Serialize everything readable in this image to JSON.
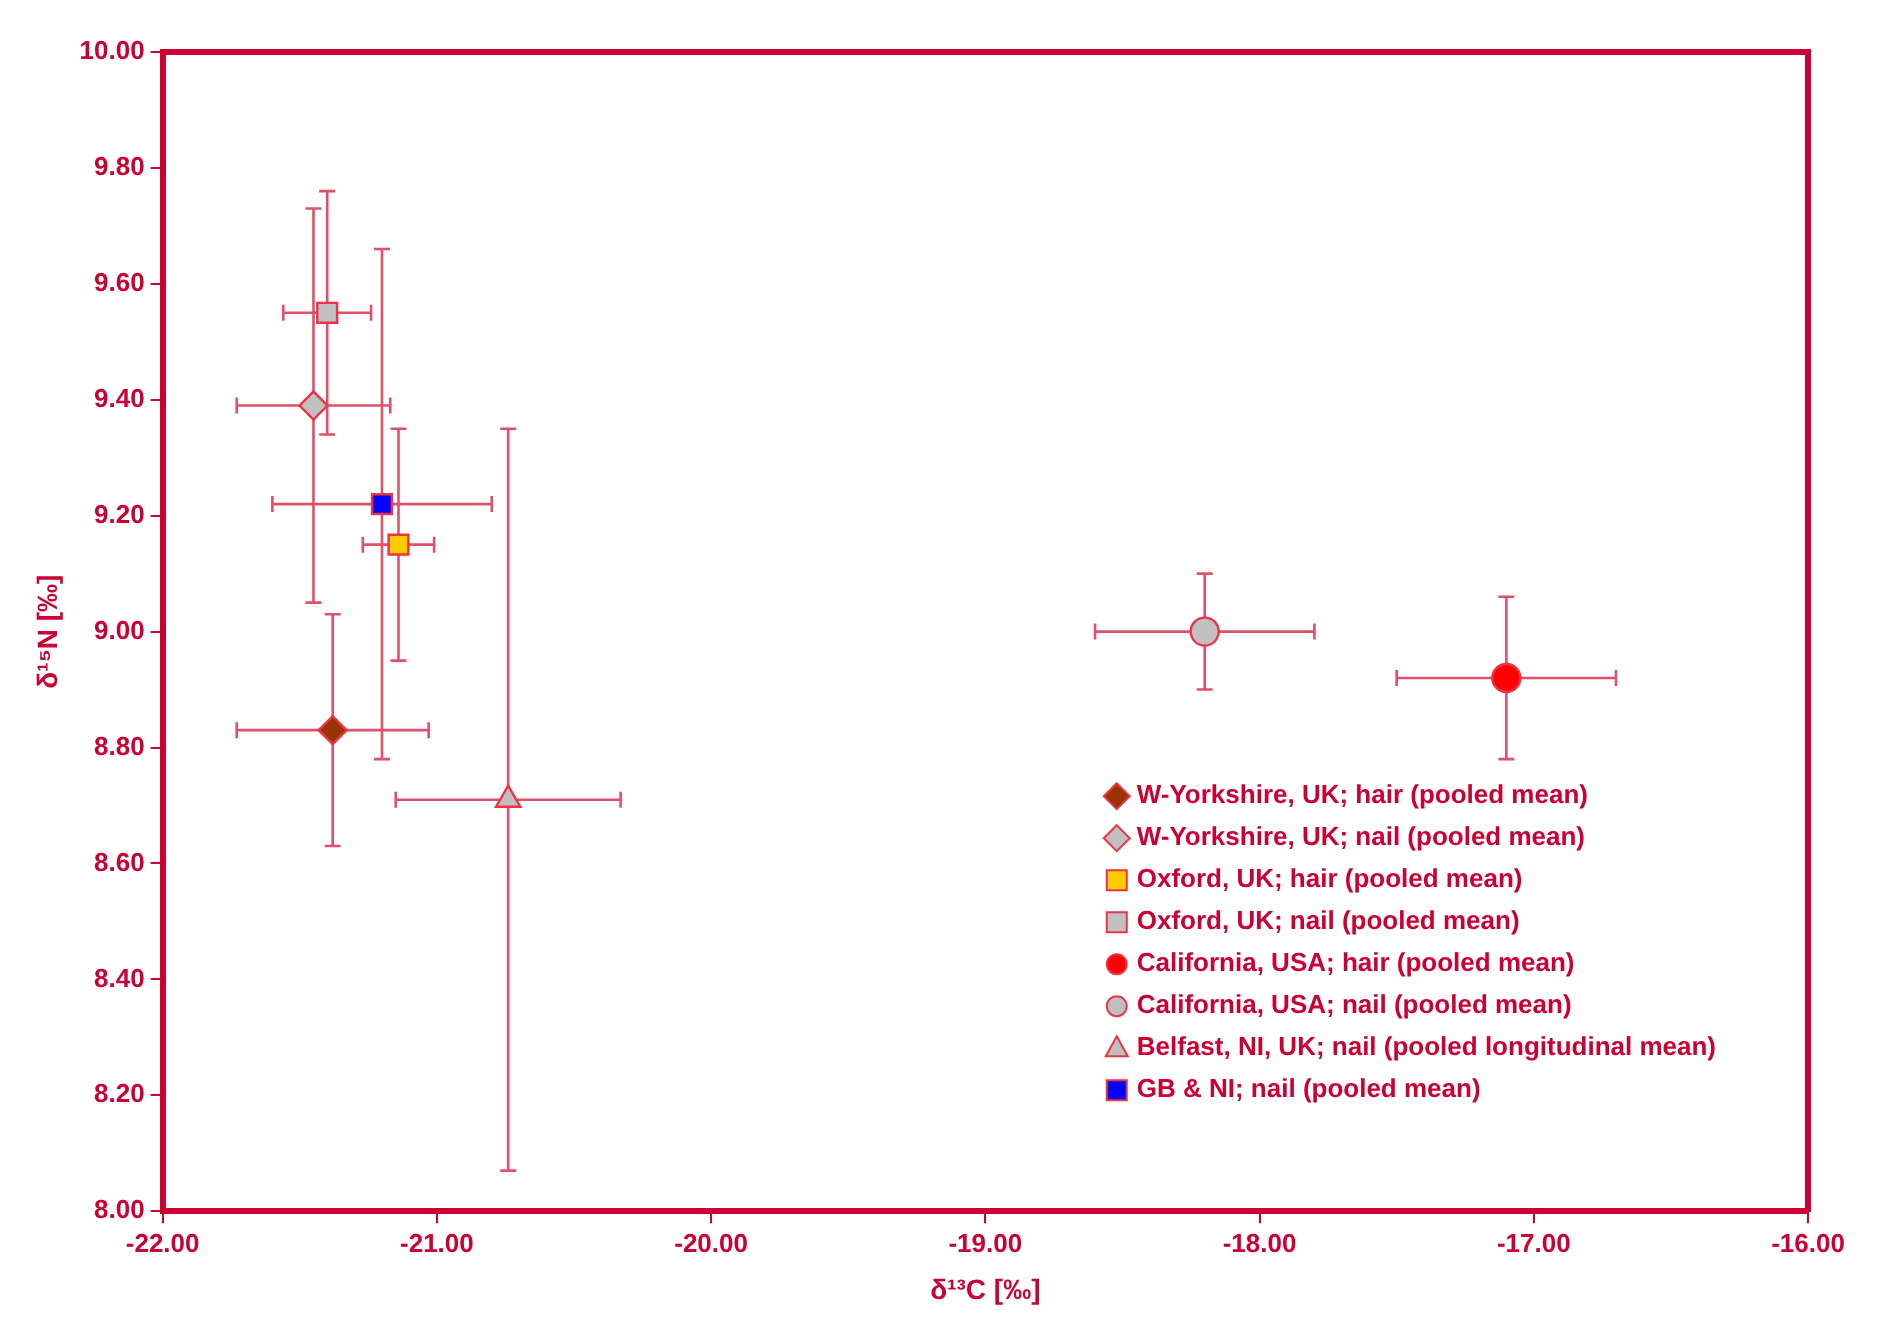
{
  "chart_data": {
    "type": "scatter",
    "xlabel": "δ¹³C [‰]",
    "ylabel": "δ¹⁵N [‰]",
    "xlim": [
      -22,
      -16
    ],
    "xticks": [
      {
        "value": -22,
        "label": "-22.00"
      },
      {
        "value": -21,
        "label": "-21.00"
      },
      {
        "value": -20,
        "label": "-20.00"
      },
      {
        "value": -19,
        "label": "-19.00"
      },
      {
        "value": -18,
        "label": "-18.00"
      },
      {
        "value": -17,
        "label": "-17.00"
      },
      {
        "value": -16,
        "label": "-16.00"
      }
    ],
    "ylim": [
      8,
      10
    ],
    "yticks": [
      {
        "value": 8,
        "label": "8.00"
      },
      {
        "value": 8.2,
        "label": "8.20"
      },
      {
        "value": 8.4,
        "label": "8.40"
      },
      {
        "value": 8.6,
        "label": "8.60"
      },
      {
        "value": 8.8,
        "label": "8.80"
      },
      {
        "value": 9,
        "label": "9.00"
      },
      {
        "value": 9.2,
        "label": "9.20"
      },
      {
        "value": 9.4,
        "label": "9.40"
      },
      {
        "value": 9.6,
        "label": "9.60"
      },
      {
        "value": 9.8,
        "label": "9.80"
      },
      {
        "value": 10,
        "label": "10.00"
      }
    ],
    "grid": false,
    "legend": "bottom right",
    "series": [
      {
        "name": "W-Yorkshire, UK; hair (pooled mean)",
        "color": "#993300",
        "marker": "diamond",
        "x": [
          -21.38
        ],
        "values": [
          8.83
        ],
        "xerrors": [
          0.35
        ],
        "errors": [
          0.2
        ]
      },
      {
        "name": "W-Yorkshire, UK; nail (pooled mean)",
        "color": "#c0c0c0",
        "marker": "diamond",
        "x": [
          -21.45
        ],
        "values": [
          9.39
        ],
        "xerrors": [
          0.28
        ],
        "errors": [
          0.34
        ]
      },
      {
        "name": "Oxford, UK; hair (pooled mean)",
        "color": "#ffcc00",
        "marker": "square",
        "x": [
          -21.14
        ],
        "values": [
          9.15
        ],
        "xerrors": [
          0.13
        ],
        "errors": [
          0.2
        ]
      },
      {
        "name": "Oxford, UK; nail (pooled mean)",
        "color": "#c0c0c0",
        "marker": "square",
        "x": [
          -21.4
        ],
        "values": [
          9.55
        ],
        "xerrors": [
          0.16
        ],
        "errors": [
          0.21
        ]
      },
      {
        "name": "California, USA; hair (pooled mean)",
        "color": "#ff0000",
        "marker": "circle",
        "x": [
          -17.1
        ],
        "values": [
          8.92
        ],
        "xerrors": [
          0.4
        ],
        "errors": [
          0.14
        ]
      },
      {
        "name": "California, USA; nail (pooled mean)",
        "color": "#c0c0c0",
        "marker": "circle",
        "x": [
          -18.2
        ],
        "values": [
          9.0
        ],
        "xerrors": [
          0.4
        ],
        "errors": [
          0.1
        ]
      },
      {
        "name": "Belfast, NI, UK; nail (pooled longitudinal mean)",
        "color": "#c0c0c0",
        "marker": "triangle",
        "x": [
          -20.74
        ],
        "values": [
          8.71
        ],
        "xerrors": [
          0.41
        ],
        "errors": [
          0.64
        ]
      },
      {
        "name": "GB & NI; nail (pooled mean)",
        "color": "#0000ff",
        "marker": "square",
        "x": [
          -21.2
        ],
        "values": [
          9.22
        ],
        "xerrors": [
          0.4
        ],
        "errors": [
          0.44
        ]
      }
    ]
  }
}
